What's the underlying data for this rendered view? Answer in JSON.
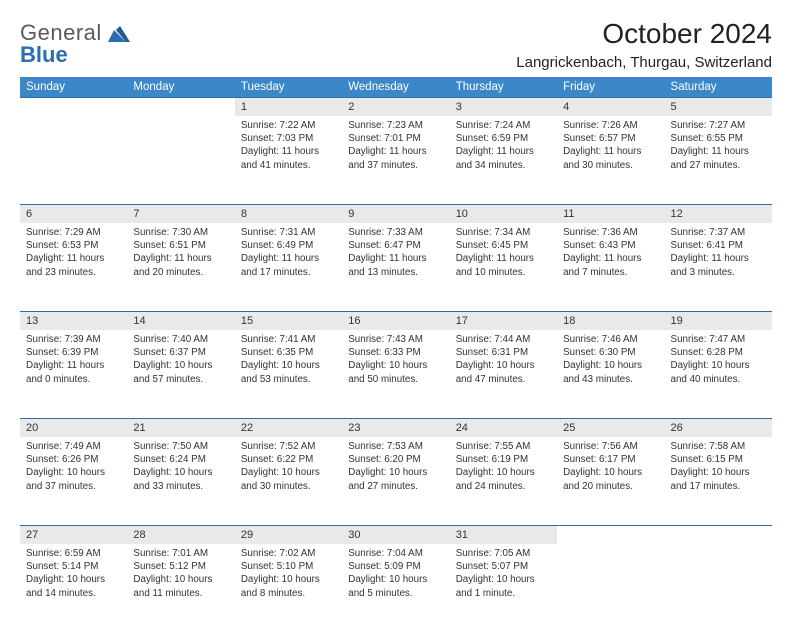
{
  "logo": {
    "line1": "General",
    "line2": "Blue"
  },
  "title": "October 2024",
  "location": "Langrickenbach, Thurgau, Switzerland",
  "colors": {
    "header_bg": "#3b87c8",
    "header_fg": "#ffffff",
    "daynum_bg": "#e9e9e9",
    "rule": "#2a6db0",
    "logo_gray": "#5a5a5a",
    "logo_blue": "#2a6db0",
    "text": "#333333"
  },
  "day_headers": [
    "Sunday",
    "Monday",
    "Tuesday",
    "Wednesday",
    "Thursday",
    "Friday",
    "Saturday"
  ],
  "weeks": [
    [
      null,
      null,
      {
        "n": "1",
        "sr": "7:22 AM",
        "ss": "7:03 PM",
        "dl": "11 hours and 41 minutes."
      },
      {
        "n": "2",
        "sr": "7:23 AM",
        "ss": "7:01 PM",
        "dl": "11 hours and 37 minutes."
      },
      {
        "n": "3",
        "sr": "7:24 AM",
        "ss": "6:59 PM",
        "dl": "11 hours and 34 minutes."
      },
      {
        "n": "4",
        "sr": "7:26 AM",
        "ss": "6:57 PM",
        "dl": "11 hours and 30 minutes."
      },
      {
        "n": "5",
        "sr": "7:27 AM",
        "ss": "6:55 PM",
        "dl": "11 hours and 27 minutes."
      }
    ],
    [
      {
        "n": "6",
        "sr": "7:29 AM",
        "ss": "6:53 PM",
        "dl": "11 hours and 23 minutes."
      },
      {
        "n": "7",
        "sr": "7:30 AM",
        "ss": "6:51 PM",
        "dl": "11 hours and 20 minutes."
      },
      {
        "n": "8",
        "sr": "7:31 AM",
        "ss": "6:49 PM",
        "dl": "11 hours and 17 minutes."
      },
      {
        "n": "9",
        "sr": "7:33 AM",
        "ss": "6:47 PM",
        "dl": "11 hours and 13 minutes."
      },
      {
        "n": "10",
        "sr": "7:34 AM",
        "ss": "6:45 PM",
        "dl": "11 hours and 10 minutes."
      },
      {
        "n": "11",
        "sr": "7:36 AM",
        "ss": "6:43 PM",
        "dl": "11 hours and 7 minutes."
      },
      {
        "n": "12",
        "sr": "7:37 AM",
        "ss": "6:41 PM",
        "dl": "11 hours and 3 minutes."
      }
    ],
    [
      {
        "n": "13",
        "sr": "7:39 AM",
        "ss": "6:39 PM",
        "dl": "11 hours and 0 minutes."
      },
      {
        "n": "14",
        "sr": "7:40 AM",
        "ss": "6:37 PM",
        "dl": "10 hours and 57 minutes."
      },
      {
        "n": "15",
        "sr": "7:41 AM",
        "ss": "6:35 PM",
        "dl": "10 hours and 53 minutes."
      },
      {
        "n": "16",
        "sr": "7:43 AM",
        "ss": "6:33 PM",
        "dl": "10 hours and 50 minutes."
      },
      {
        "n": "17",
        "sr": "7:44 AM",
        "ss": "6:31 PM",
        "dl": "10 hours and 47 minutes."
      },
      {
        "n": "18",
        "sr": "7:46 AM",
        "ss": "6:30 PM",
        "dl": "10 hours and 43 minutes."
      },
      {
        "n": "19",
        "sr": "7:47 AM",
        "ss": "6:28 PM",
        "dl": "10 hours and 40 minutes."
      }
    ],
    [
      {
        "n": "20",
        "sr": "7:49 AM",
        "ss": "6:26 PM",
        "dl": "10 hours and 37 minutes."
      },
      {
        "n": "21",
        "sr": "7:50 AM",
        "ss": "6:24 PM",
        "dl": "10 hours and 33 minutes."
      },
      {
        "n": "22",
        "sr": "7:52 AM",
        "ss": "6:22 PM",
        "dl": "10 hours and 30 minutes."
      },
      {
        "n": "23",
        "sr": "7:53 AM",
        "ss": "6:20 PM",
        "dl": "10 hours and 27 minutes."
      },
      {
        "n": "24",
        "sr": "7:55 AM",
        "ss": "6:19 PM",
        "dl": "10 hours and 24 minutes."
      },
      {
        "n": "25",
        "sr": "7:56 AM",
        "ss": "6:17 PM",
        "dl": "10 hours and 20 minutes."
      },
      {
        "n": "26",
        "sr": "7:58 AM",
        "ss": "6:15 PM",
        "dl": "10 hours and 17 minutes."
      }
    ],
    [
      {
        "n": "27",
        "sr": "6:59 AM",
        "ss": "5:14 PM",
        "dl": "10 hours and 14 minutes."
      },
      {
        "n": "28",
        "sr": "7:01 AM",
        "ss": "5:12 PM",
        "dl": "10 hours and 11 minutes."
      },
      {
        "n": "29",
        "sr": "7:02 AM",
        "ss": "5:10 PM",
        "dl": "10 hours and 8 minutes."
      },
      {
        "n": "30",
        "sr": "7:04 AM",
        "ss": "5:09 PM",
        "dl": "10 hours and 5 minutes."
      },
      {
        "n": "31",
        "sr": "7:05 AM",
        "ss": "5:07 PM",
        "dl": "10 hours and 1 minute."
      },
      null,
      null
    ]
  ],
  "labels": {
    "sunrise": "Sunrise:",
    "sunset": "Sunset:",
    "daylight": "Daylight:"
  }
}
